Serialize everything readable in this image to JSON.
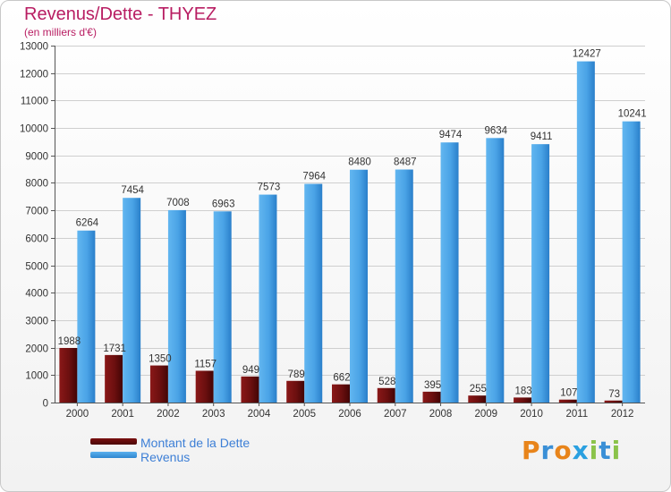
{
  "chart_data": {
    "type": "bar",
    "title": "Revenus/Dette - THYEZ",
    "subtitle": "(en milliers d'€)",
    "categories": [
      "2000",
      "2001",
      "2002",
      "2003",
      "2004",
      "2005",
      "2006",
      "2007",
      "2008",
      "2009",
      "2010",
      "2011",
      "2012"
    ],
    "series": [
      {
        "name": "Montant de la Dette",
        "values": [
          1988,
          1731,
          1350,
          1157,
          949,
          789,
          662,
          528,
          395,
          255,
          183,
          107,
          73
        ],
        "color": "#6b0f0f",
        "value_labels": [
          "1988",
          "1731",
          "1350",
          "1157",
          "949",
          "789",
          "662",
          "528",
          "395",
          "255",
          "183",
          "107",
          "73"
        ]
      },
      {
        "name": "Revenus",
        "values": [
          6264,
          7454,
          7008,
          6963,
          7573,
          7964,
          8480,
          8487,
          9474,
          9634,
          9411,
          12427,
          10241
        ],
        "color": "#3f9be3",
        "value_labels": [
          "6264",
          "7454",
          "7008",
          "6963",
          "7573",
          "7964",
          "8480",
          "8487",
          "9474",
          "9634",
          "9411",
          "12427",
          "10241"
        ]
      }
    ],
    "ylim": [
      0,
      13000
    ],
    "yticks": [
      0,
      1000,
      2000,
      3000,
      4000,
      5000,
      6000,
      7000,
      8000,
      9000,
      10000,
      11000,
      12000,
      13000
    ],
    "grid": true,
    "legend": "bottom-left"
  },
  "logo": {
    "letters": [
      "P",
      "r",
      "o",
      "x",
      "i",
      "t",
      "i"
    ],
    "colors": [
      "#e8841a",
      "#3a8fd6",
      "#e8841a",
      "#2aa0e0",
      "#8bc34a",
      "#3a8fd6",
      "#8bc34a"
    ]
  }
}
